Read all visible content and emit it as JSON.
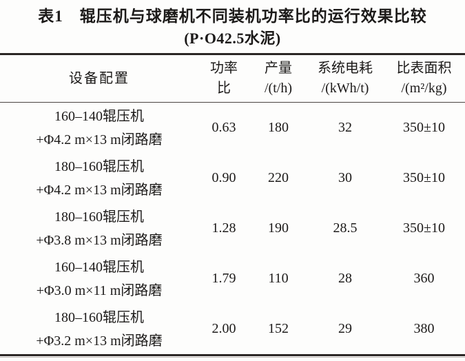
{
  "table": {
    "title": "表1　辊压机与球磨机不同装机功率比的运行效果比较",
    "subtitle": "(P·O42.5水泥)",
    "headers": {
      "device": "设备配置",
      "cols": [
        {
          "line1": "功率",
          "line2": "比"
        },
        {
          "line1": "产量",
          "line2": "/(t/h)"
        },
        {
          "line1": "系统电耗",
          "line2": "/(kWh/t)"
        },
        {
          "line1": "比表面积",
          "line2": "/(m²/kg)"
        }
      ]
    },
    "rows": [
      {
        "device1": "160–140辊压机",
        "device2": "+Φ4.2 m×13 m闭路磨",
        "ratio": "0.63",
        "output": "180",
        "consumption": "32",
        "surface": "350±10"
      },
      {
        "device1": "180–160辊压机",
        "device2": "+Φ4.2 m×13 m闭路磨",
        "ratio": "0.90",
        "output": "220",
        "consumption": "30",
        "surface": "350±10"
      },
      {
        "device1": "180–160辊压机",
        "device2": "+Φ3.8 m×13 m闭路磨",
        "ratio": "1.28",
        "output": "190",
        "consumption": "28.5",
        "surface": "350±10"
      },
      {
        "device1": "160–140辊压机",
        "device2": "+Φ3.0 m×11 m闭路磨",
        "ratio": "1.79",
        "output": "110",
        "consumption": "28",
        "surface": "360"
      },
      {
        "device1": "180–160辊压机",
        "device2": "+Φ3.2 m×13 m闭路磨",
        "ratio": "2.00",
        "output": "152",
        "consumption": "29",
        "surface": "380"
      }
    ]
  }
}
